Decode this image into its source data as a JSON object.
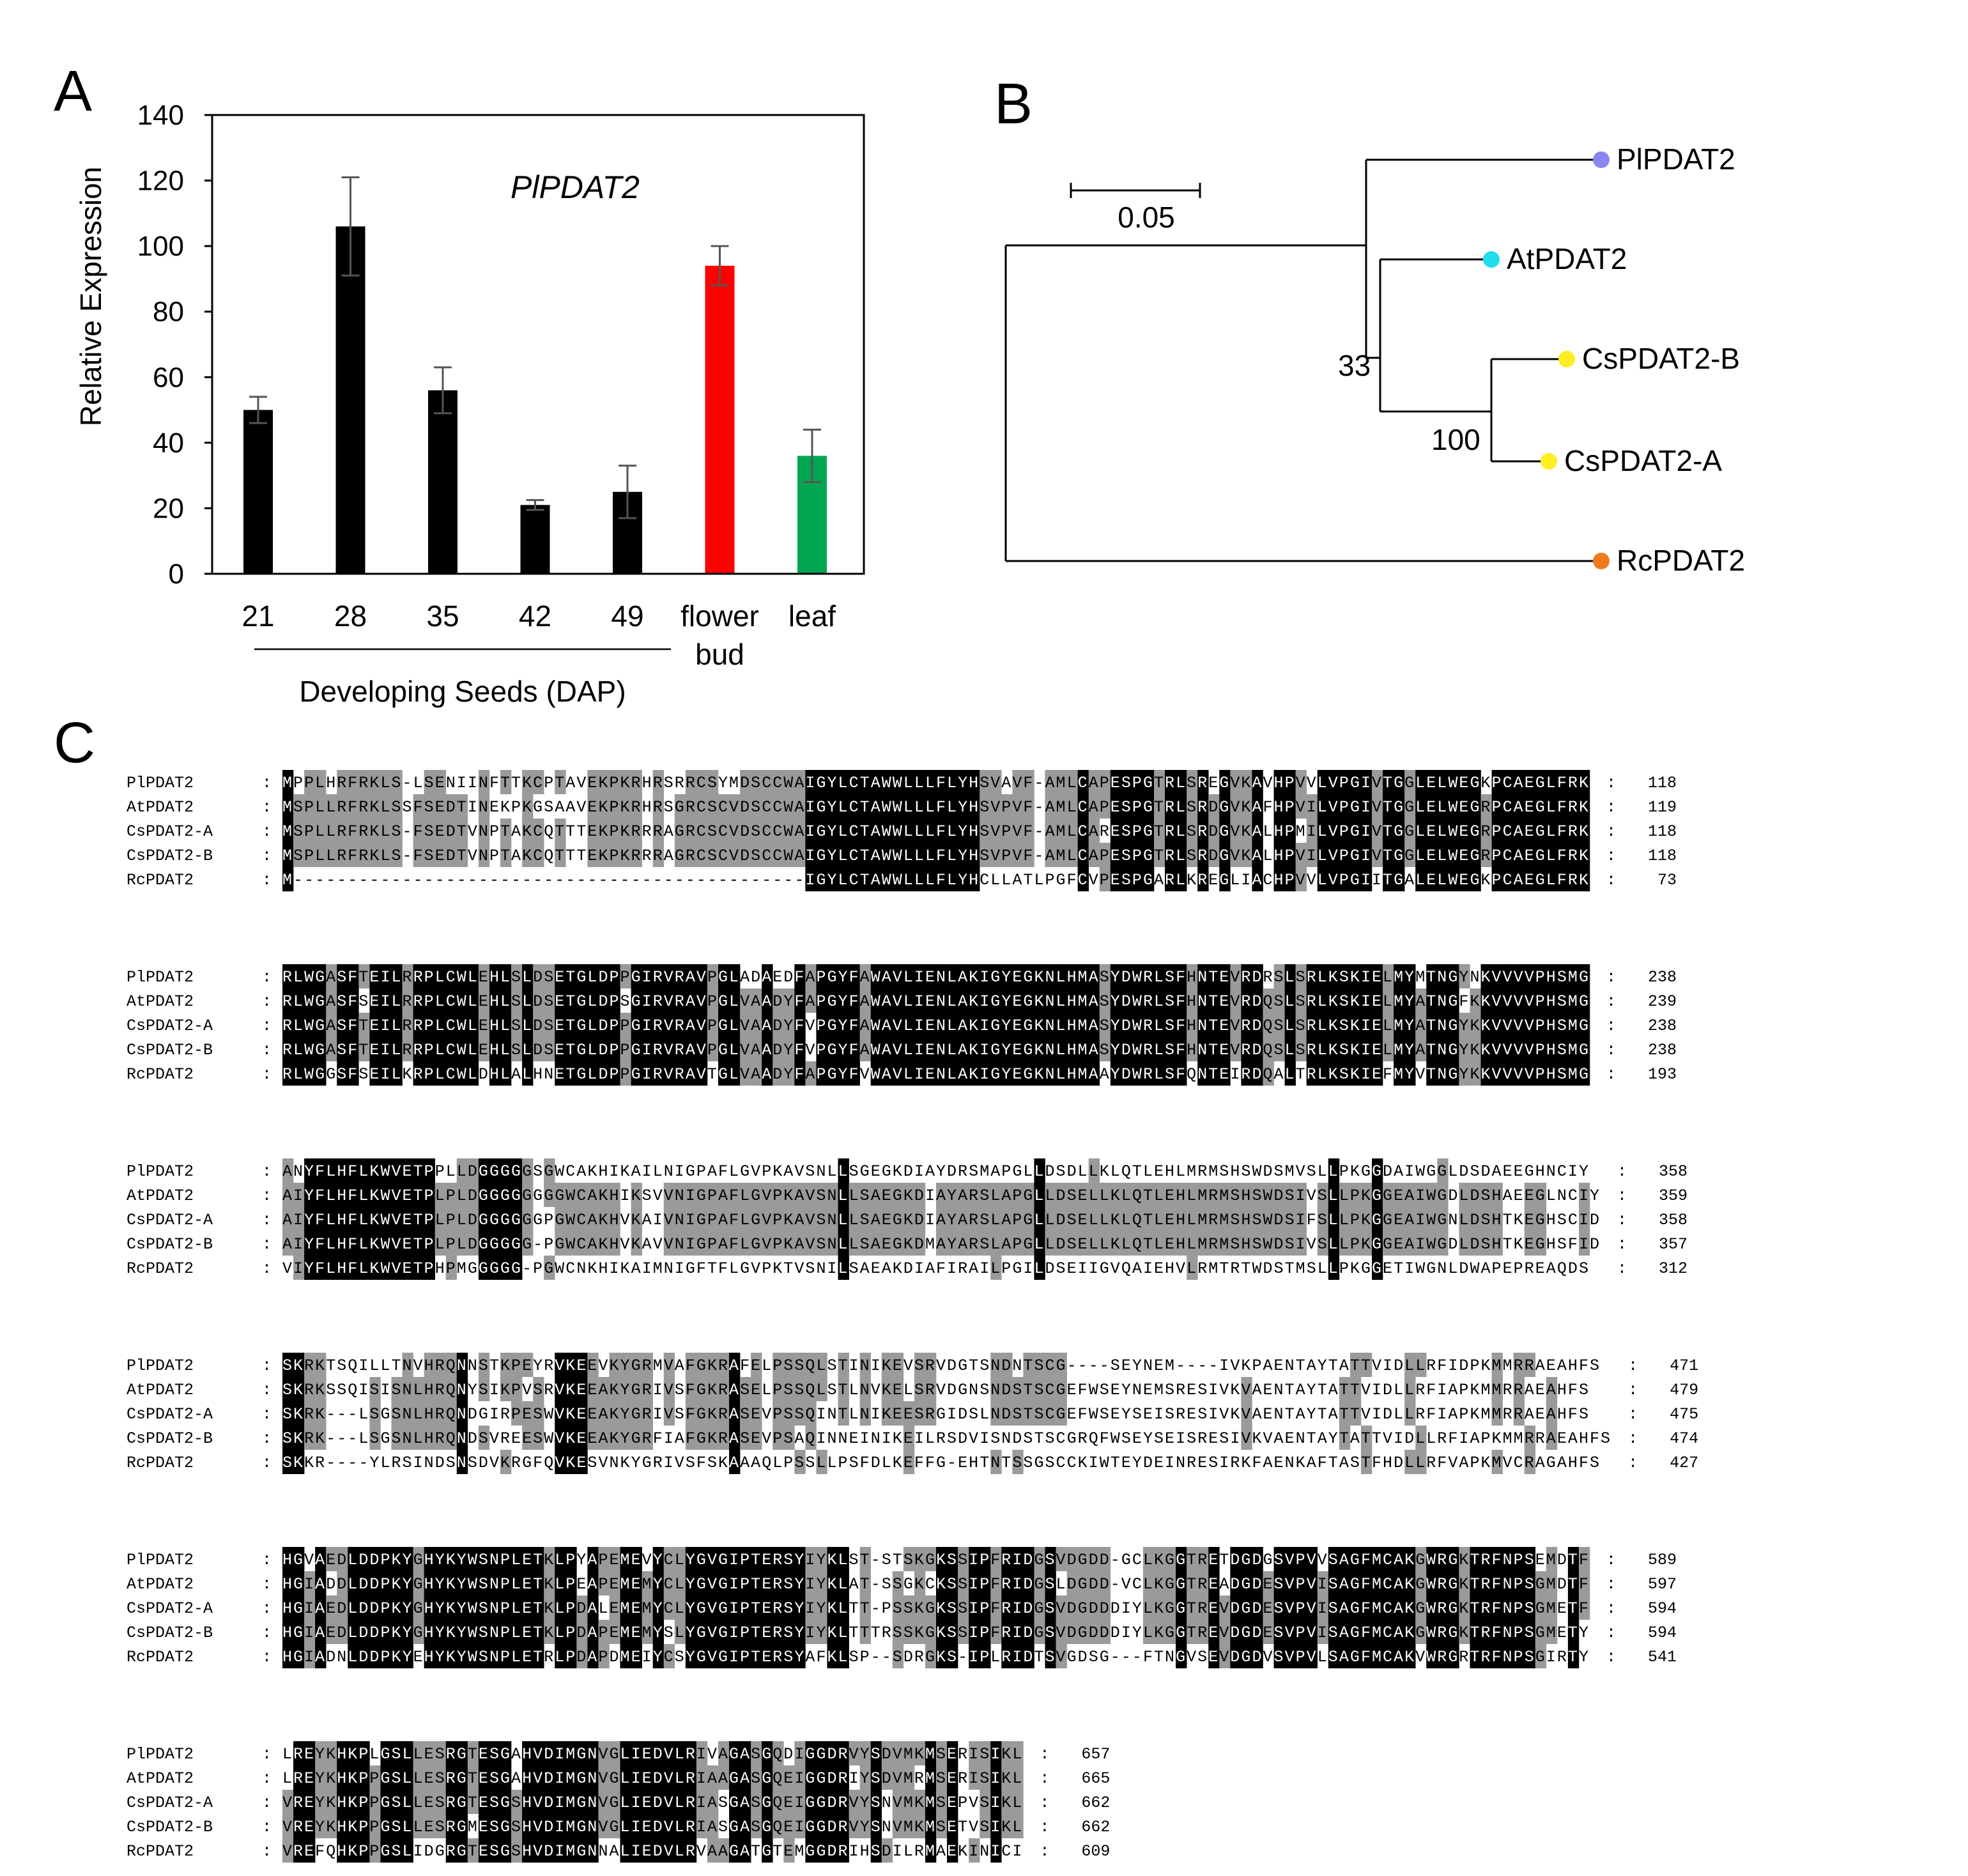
{
  "panel_labels": {
    "a": "A",
    "b": "B",
    "c": "C"
  },
  "chart_data": [
    {
      "type": "bar",
      "title": "PlPDAT2",
      "ylabel": "Relative Expression",
      "xlabel": "Developing Seeds (DAP)",
      "ylim": [
        0,
        140
      ],
      "yticks": [
        "0",
        "20",
        "40",
        "60",
        "80",
        "100",
        "120",
        "140"
      ],
      "categories": [
        "21",
        "28",
        "35",
        "42",
        "49",
        "flower bud",
        "leaf"
      ],
      "values": [
        50,
        106,
        56,
        21,
        25,
        94,
        36
      ],
      "errors": [
        4,
        15,
        7,
        1.5,
        8,
        6,
        8
      ],
      "colors": [
        "#000000",
        "#000000",
        "#000000",
        "#000000",
        "#000000",
        "#ff0000",
        "#00a651"
      ],
      "group_label_span": [
        "21",
        "49"
      ],
      "grid": false
    },
    {
      "type": "tree",
      "scale_label": "0.05",
      "scale_value": 0.05,
      "leaves": [
        {
          "name": "PlPDAT2",
          "color": "#8a86f0"
        },
        {
          "name": "AtPDAT2",
          "color": "#22ddee"
        },
        {
          "name": "CsPDAT2-B",
          "color": "#ffee22"
        },
        {
          "name": "CsPDAT2-A",
          "color": "#ffee22"
        },
        {
          "name": "RcPDAT2",
          "color": "#f07a1e"
        }
      ],
      "bootstrap": [
        "33",
        "100"
      ]
    },
    {
      "type": "table",
      "names": [
        "PlPDAT2",
        "AtPDAT2",
        "CsPDAT2-A",
        "CsPDAT2-B",
        "RcPDAT2"
      ],
      "blocks": [
        {
          "ends": [
            "118",
            "119",
            "118",
            "118",
            "73"
          ],
          "rows": [
            "MPPLHRFRKLS-LSENIINFTTKCPTAVEKPKRHRSRRCSYMDSCCWAIGYLCTAWWLLLFLYHSVAVF-AMLCAPESPGTRLSREGVKAVHPVVLVPGIVTGGLELWEGKPCAEGLFRK",
            "MSPLLRFRKLSSFSEDTINEKPKGSAAVEKPKRHRSGRCSCVDSCCWAIGYLCTAWWLLLFLYHSVPVF-AMLCAPESPGTRLSRDGVKAFHPVILVPGIVTGGLELWEGRPCAEGLFRK",
            "MSPLLRFRKLS-FSEDTVNPTAKCQTTTEKPKRRRAGRCSCVDSCCWAIGYLCTAWWLLLFLYHSVPVF-AMLCARESPGTRLSRDGVKALHPMILVPGIVTGGLELWEGRPCAEGLFRK",
            "MSPLLRFRKLS-FSEDTVNPTAKCQTTTEKPKRRRAGRCSCVDSCCWAIGYLCTAWWLLLFLYHSVPVF-AMLCAPESPGTRLSRDGVKALHPVILVPGIVTGGLELWEGRPCAEGLFRK",
            "M-----------------------------------------------IGYLCTAWWLLLFLYHCLLATLPGFCVPESPGARLKREGLIACHPVVLVPGIITGALELWEGKPCAEGLFRK"
          ]
        },
        {
          "ends": [
            "238",
            "239",
            "238",
            "238",
            "193"
          ],
          "rows": [
            "RLWGASFTEILRRPLCWLEHLSLDSETGLDPPGIRVRAVPGLADAEDFAPGYFAWAVLIENLAKIGYEGKNLHMASYDWRLSFHNTEVRDRSLSRLKSKIELMYMTNGYNKVVVVPHSMG",
            "RLWGASFSEILRRPLCWLEHLSLDSETGLDPSGIRVRAVPGLVAADYFAPGYFAWAVLIENLAKIGYEGKNLHMASYDWRLSFHNTEVRDQSLSRLKSKIELMYATNGFKKVVVVPHSMG",
            "RLWGASFTEILRRPLCWLEHLSLDSETGLDPPGIRVRAVPGLVAADYFVPGYFAWAVLIENLAKIGYEGKNLHMASYDWRLSFHNTEVRDQSLSRLKSKIELMYATNGYKKVVVVPHSMG",
            "RLWGASFTEILRRPLCWLEHLSLDSETGLDPPGIRVRAVPGLVAADYFVPGYFAWAVLIENLAKIGYEGKNLHMASYDWRLSFHNTEVRDQSLSRLKSKIELMYATNGYKKVVVVPHSMG",
            "RLWGGSFSEILKRPLCWLDHLALHNETGLDPPGIRVRAVTGLVAADYFAPGYFVWAVLIENLAKIGYEGKNLHMAAYDWRLSFQNTEIRDQALTRLKSKIEFMYVTNGYKKVVVVPHSMG"
          ]
        },
        {
          "ends": [
            "358",
            "359",
            "358",
            "357",
            "312"
          ],
          "rows": [
            "ANYFLHFLKWVETPPLLDGGGGGSGWCAKHIKAILNIGPAFLGVPKAVSNLLSGEGKDIAYDRSMAPGLLDSDLLKLQTLEHLMRMSHSWDSMVSLLPKGGDAIWGGLDSDAEEGHNCIY",
            "AIYFLHFLKWVETPLPLDGGGGGGGGWCAKHIKSVVNIGPAFLGVPKAVSNLLSAEGKDIAYARSLAPGLLDSELLKLQTLEHLMRMSHSWDSIVSLLPKGGEAIWGDLDSHAEEGLNCIY",
            "AIYFLHFLKWVETPLPLDGGGGGGPGWCAKHVKAIVNIGPAFLGVPKAVSNLLSAEGKDIAYARSLAPGLLDSELLKLQTLEHLMRMSHSWDSIFSLLPKGGEAIWGNLDSHTKEGHSCID",
            "AIYFLHFLKWVETPLPLDGGGGG-PGWCAKHVKAVVNIGPAFLGVPKAVSNLLSAEGKDMAYARSLAPGLLDSELLKLQTLEHLMRMSHSWDSIVSLLPKGGEAIWGDLDSHTKEGHSFID",
            "VIYFLHFLKWVETPHPMGGGGG-PGWCNKHIKAIMNIGFTFLGVPKTVSNILSAEAKDIAFIRAILPGILDSEIIGVQAIEHVLRMTRTWDSTMSLLPKGGETIWGNLDWAPEPREAQDS"
          ]
        },
        {
          "ends": [
            "471",
            "479",
            "475",
            "474",
            "427"
          ],
          "rows": [
            "SKRKTSQILLTNVHRQNNSTKPEYRVKEEVKYGRMVAFGKRAFELPSSQLSTINIKEVSRVDGTSNDNTSCG----SEYNEM----IVKPAENTAYTATTVIDLLRFIDPKMMRRAEAHFS",
            "SKRKSSQISISNLHRQNYSIKPVSRVKEEAKYGRIVSFGKRASELPSSQLSTLNVKELSRVDGNSNDSTSCGEFWSEYNEMSRESIVKVAENTAYTATTVIDLLRFIAPKMMRRAEAHFS",
            "SKRK---LSGSNLHRQNDGIRPESWVKEEAKYGRIVSFGKRASEVPSSQINTLNIKEESRGIDSLNDSTSCGEFWSEYSEISRESIVKVAENTAYTATTVIDLLRFIAPKMMRRAEAHFS",
            "SKRK---LSGSNLHRQNDSVREESWVKEEAKYGRFIAFGKRASEVPSAQINNEINIKEILRSDVISNDSTSCGRQFWSEYSEISRESIVKVAENTAYTATTVIDLLRFIAPKMMRRAEAHFS",
            "SKKR----YLRSINDSNSDVKRGFQVKESVNKYGRIVSFSKAAAQLPSSLLPSFDLKEFFG-EHTNTSSGSCCKIWTEYDEINRESIRKFAENKAFTASTFHDLLRFVAPKMVCRAGAHFS"
          ]
        },
        {
          "ends": [
            "589",
            "597",
            "594",
            "594",
            "541"
          ],
          "rows": [
            "HGVAEDLDDPKYGHYKYWSNPLETKLPYAPEMEVYCLYGVGIPTERSYIYKLST-STSKGKSSIPFRIDGSVDGDD-GCLKGGTRETDGDGSVPVVSAGFMCAKGWRGKTRFNPSEMDTF",
            "HGIADDLDDPKYGHYKYWSNPLETKLPEAPEMEMYCLYGVGIPTERSYIYKLAT-SSGKCKSSIPFRIDGSLDGDD-VCLKGGTREADGDESVPVISAGFMCAKGWRGKTRFNPSGMDTF",
            "HGIAEDLDDPKYGHYKYWSNPLETKLPDALEMEMYCLYGVGIPTERSYIYKLTT-PSSKGKSSIPFRIDGSVDGDDDIYLKGGTREVDGDESVPVISAGFMCAKGWRGKTRFNPSGMETF",
            "HGIAEDLDDPKYGHYKYWSNPLETKLPDAPEMEMYSLYGVGIPTERSYIYKLTTTRSSKGKSSIPFRIDGSVDGDDDIYLKGGTREVDGDESVPVISAGFMCAKGWRGKTRFNPSGMETY",
            "HGIADNLDDPKYEHYKYWSNPLETRLPDAPDMEIYCSYGVGIPTERSYAFKLSP--SDRGKS-IPLRIDTSVGDSG---FTNGVSEVDGDVSVPVLSAGFMCAKVWRGRTRFNPSGIRTY"
          ]
        },
        {
          "ends": [
            "657",
            "665",
            "662",
            "662",
            "609"
          ],
          "rows": [
            "LREYKHKPLGSLLESRGTESGAHVDIMGNVGLIEDVLRIVAGASGQDIGGDRVYSDVMKMSERISIKL",
            "LREYKHKPPGSLLESRGTESGAHVDIMGNVGLIEDVLRIAAGASGQEIGGDRIYSDVMRMSERISIKL",
            "VREYKHKPPGSLLESRGTESGSHVDIMGNVGLIEDVLRIASGASGQEIGGDRVYSNVMKMSEPVSIKL",
            "VREYKHKPPGSLLESRGMESGSHVDIMGNVGLIEDVLRIASGASGQEIGGDRVYSNVMKMSETVSIKL",
            "VREFQHKPPGSLIDGRGTESGSHVDIMGNNALIEDVLRVAAGATGTEMGGDRIHSDILRMAEKINICI"
          ]
        }
      ]
    }
  ]
}
